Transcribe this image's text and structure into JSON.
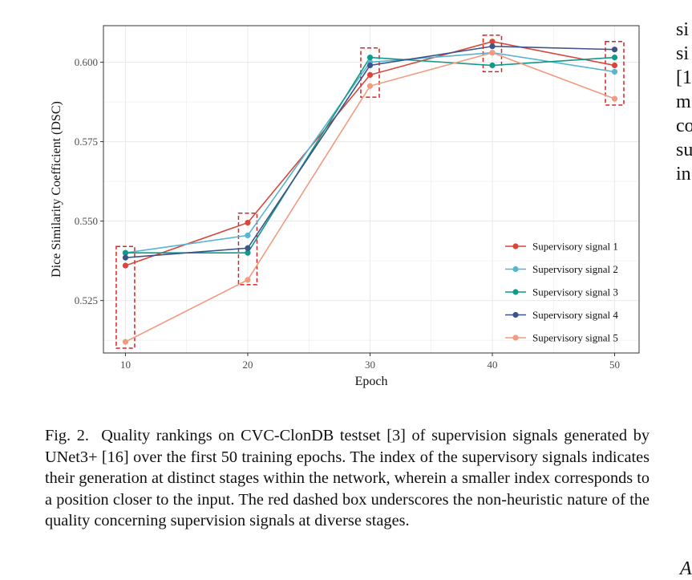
{
  "chart_data": {
    "type": "line",
    "xlabel": "Epoch",
    "ylabel": "Dice Similarity Coefficient (DSC)",
    "x": [
      10,
      20,
      30,
      40,
      50
    ],
    "x_ticks": [
      "10",
      "20",
      "30",
      "40",
      "50"
    ],
    "y_ticks": [
      "0.525",
      "0.550",
      "0.575",
      "0.600"
    ],
    "y_tick_values": [
      0.525,
      0.55,
      0.575,
      0.6
    ],
    "xlim": [
      8.2,
      52
    ],
    "ylim": [
      0.5085,
      0.6115
    ],
    "grid": true,
    "legend_position": "bottom-right",
    "series": [
      {
        "name": "Supervisory signal 1",
        "color": "#d9473c",
        "values": [
          0.536,
          0.5495,
          0.596,
          0.6065,
          0.599
        ]
      },
      {
        "name": "Supervisory signal 2",
        "color": "#56b5d1",
        "values": [
          0.54,
          0.5455,
          0.6,
          0.603,
          0.597
        ]
      },
      {
        "name": "Supervisory signal 3",
        "color": "#0f9a8a",
        "values": [
          0.54,
          0.54,
          0.6015,
          0.599,
          0.6015
        ]
      },
      {
        "name": "Supervisory signal 4",
        "color": "#3c5488",
        "values": [
          0.5385,
          0.5415,
          0.599,
          0.605,
          0.604
        ]
      },
      {
        "name": "Supervisory signal 5",
        "color": "#f29b7f",
        "values": [
          0.512,
          0.5315,
          0.5925,
          0.603,
          0.5885
        ]
      }
    ],
    "highlight_boxes": [
      {
        "x": 10,
        "y_range": [
          0.51,
          0.542
        ],
        "color": "#dd2222"
      },
      {
        "x": 20,
        "y_range": [
          0.53,
          0.5525
        ],
        "color": "#dd2222"
      },
      {
        "x": 30,
        "y_range": [
          0.589,
          0.6045
        ],
        "color": "#dd2222"
      },
      {
        "x": 40,
        "y_range": [
          0.597,
          0.6085
        ],
        "color": "#dd2222"
      },
      {
        "x": 50,
        "y_range": [
          0.5865,
          0.6065
        ],
        "color": "#dd2222"
      }
    ]
  },
  "side_text": [
    "si",
    "si",
    "[1",
    "m",
    "co",
    "su",
    "in"
  ],
  "caption": {
    "label": "Fig. 2.",
    "text": "Quality rankings on CVC-ClonDB testset [3] of supervision signals generated by UNet3+ [16] over the first 50 training epochs. The index of the supervisory signals indicates their generation at distinct stages within the network, wherein a smaller index corresponds to a position closer to the input. The red dashed box underscores the non-heuristic nature of the quality concerning supervision signals at diverse stages."
  },
  "corner_text": "A"
}
